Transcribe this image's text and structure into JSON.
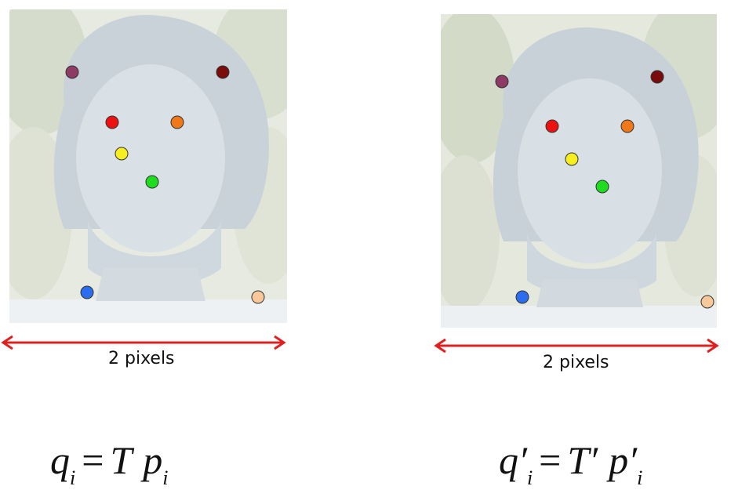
{
  "left_panel": {
    "scale_label": "2 pixels",
    "equation": {
      "lhs": "q",
      "lhs_sub": "i",
      "op": "=",
      "transform": "T",
      "rhs": "p",
      "rhs_sub": "i"
    }
  },
  "right_panel": {
    "scale_label": "2 pixels",
    "equation": {
      "lhs": "q′",
      "lhs_sub": "i",
      "op": "=",
      "transform": "T′",
      "rhs": "p′",
      "rhs_sub": "i"
    }
  },
  "colors": {
    "arrow": "#e02020",
    "points": {
      "purple": "#8e3a64",
      "dark_red": "#7a0c0c",
      "red": "#ee1111",
      "orange": "#f07818",
      "yellow": "#f6ee1e",
      "green": "#1edc1e",
      "blue": "#2c6cee",
      "peach": "#f8c89a"
    }
  }
}
